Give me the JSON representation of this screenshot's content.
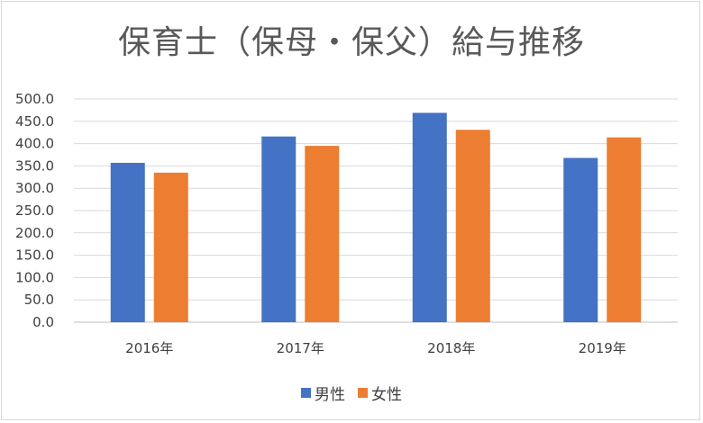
{
  "chart_data": {
    "type": "bar",
    "title": "保育士（保母・保父）給与推移",
    "categories": [
      "2016年",
      "2017年",
      "2018年",
      "2019年"
    ],
    "series": [
      {
        "name": "男性",
        "color": "#4472C4",
        "values": [
          357,
          416,
          469,
          368
        ]
      },
      {
        "name": "女性",
        "color": "#ED7D31",
        "values": [
          335,
          395,
          431,
          414
        ]
      }
    ],
    "yticks": [
      "0.0",
      "50.0",
      "100.0",
      "150.0",
      "200.0",
      "250.0",
      "300.0",
      "350.0",
      "400.0",
      "450.0",
      "500.0"
    ],
    "ylim": [
      0,
      500
    ],
    "grid": true,
    "legend_position": "bottom"
  }
}
